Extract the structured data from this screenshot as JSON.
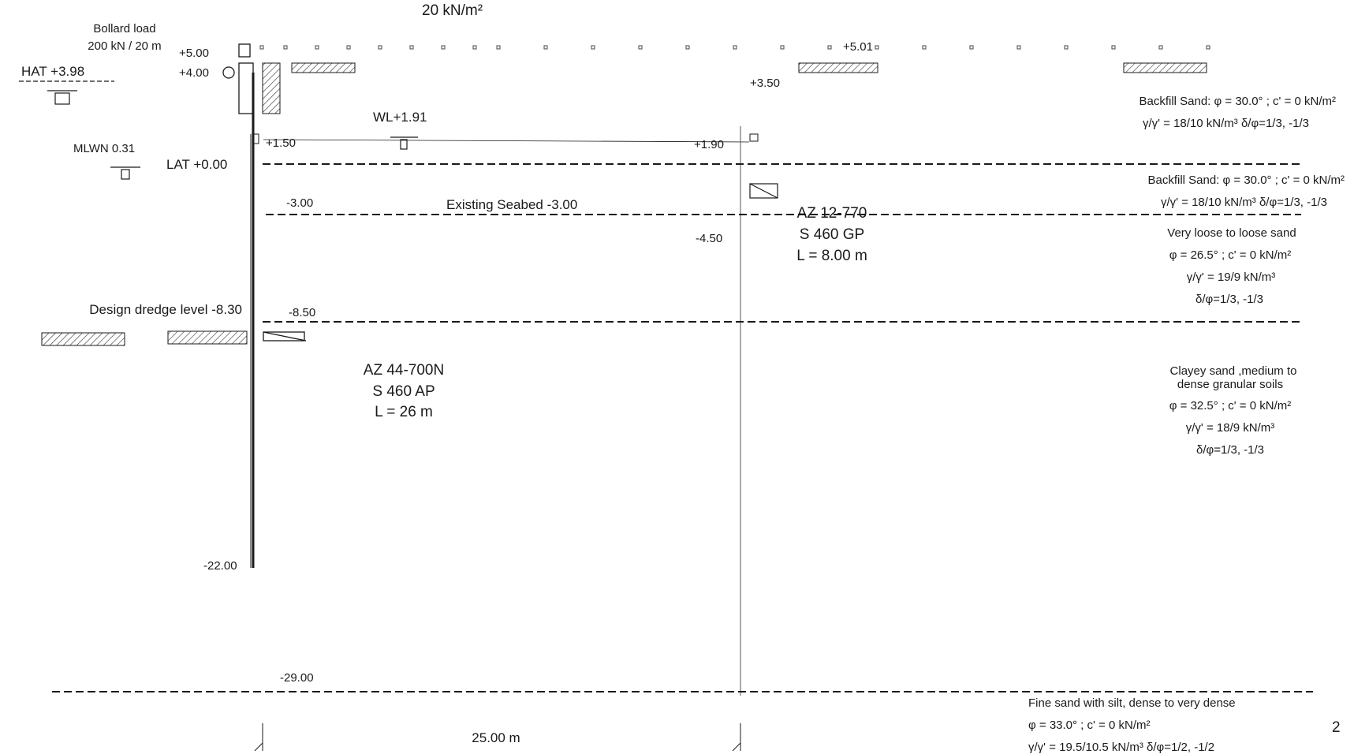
{
  "surcharge": {
    "value": "20 kN/m²"
  },
  "bollard": {
    "title": "Bollard load",
    "value": "200 kN / 20 m"
  },
  "levels": {
    "hat": "HAT +3.98",
    "mlwn": "MLWN 0.31",
    "lat": "LAT +0.00",
    "wl": "WL+1.91",
    "top_wall": "+5.00",
    "top_rear": "+5.01",
    "cap": "+4.00",
    "anchor": "+3.50",
    "tie_front": "+1.50",
    "tie_rear": "+1.90",
    "seabed_level": "-3.00",
    "existing_seabed": "Existing Seabed -3.00",
    "anchor_toe": "-4.50",
    "dredge_level": "-8.50",
    "design_dredge": "Design dredge level -8.30",
    "front_toe": "-22.00",
    "bottom_layer": "-29.00"
  },
  "piles": {
    "front": {
      "profile": "AZ 44-700N",
      "grade": "S 460 AP",
      "length": "L = 26 m"
    },
    "anchor": {
      "profile": "AZ 12-770",
      "grade": "S 460 GP",
      "length": "L = 8.00 m"
    }
  },
  "span": "25.00 m",
  "page_number": "2",
  "soils": [
    {
      "name": "backfill-upper",
      "lines": [
        "Backfill Sand:  φ = 30.0°  ; c' = 0 kN/m²",
        "γ/γ' = 18/10 kN/m³  δ/φ=1/3, -1/3"
      ]
    },
    {
      "name": "backfill-lower",
      "lines": [
        "Backfill Sand:  φ = 30.0°  ; c' = 0 kN/m²",
        "γ/γ' = 18/10 kN/m³  δ/φ=1/3, -1/3"
      ]
    },
    {
      "name": "very-loose-sand",
      "lines": [
        "Very loose to loose sand",
        "φ = 26.5°  ; c' = 0 kN/m²",
        "γ/γ' = 19/9 kN/m³",
        "δ/φ=1/3, -1/3"
      ]
    },
    {
      "name": "clayey-sand",
      "lines": [
        "Clayey sand ,medium to",
        "dense granular soils",
        "φ = 32.5°  ; c' = 0 kN/m²",
        "γ/γ' = 18/9 kN/m³",
        "δ/φ=1/3, -1/3"
      ]
    },
    {
      "name": "fine-sand",
      "lines": [
        "Fine sand  with silt, dense to very dense",
        "φ = 33.0°  ; c' = 0 kN/m²",
        "γ/γ' = 19.5/10.5 kN/m³   δ/φ=1/2, -1/2"
      ]
    }
  ],
  "colors": {
    "line": "#1a1a1a",
    "hatch": "#333333"
  }
}
